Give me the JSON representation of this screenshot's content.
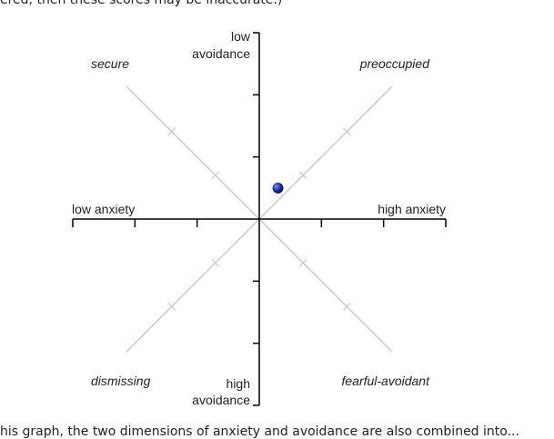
{
  "text": {
    "top_line": "ered, then these scores may be inaccurate.)",
    "bottom_line": "his graph, the two dimensions of anxiety and avoidance are also combined into..."
  },
  "diagram": {
    "axis_labels": {
      "low_avoidance": [
        "low",
        "avoidance"
      ],
      "high_avoidance": [
        "high",
        "avoidance"
      ],
      "low_anxiety": "low anxiety",
      "high_anxiety": "high anxiety"
    },
    "quadrants": {
      "top_left": "secure",
      "top_right": "preoccupied",
      "bottom_left": "dismissing",
      "bottom_right": "fearful-avoidant"
    },
    "point": {
      "anxiety": 4.3,
      "avoidance": 3.5
    },
    "scale": {
      "min": 1,
      "max": 7,
      "midpoint": 4
    },
    "colors": {
      "axis": "#000000",
      "diagonal": "#c8c8c8",
      "point": "#1a2fa8"
    }
  }
}
